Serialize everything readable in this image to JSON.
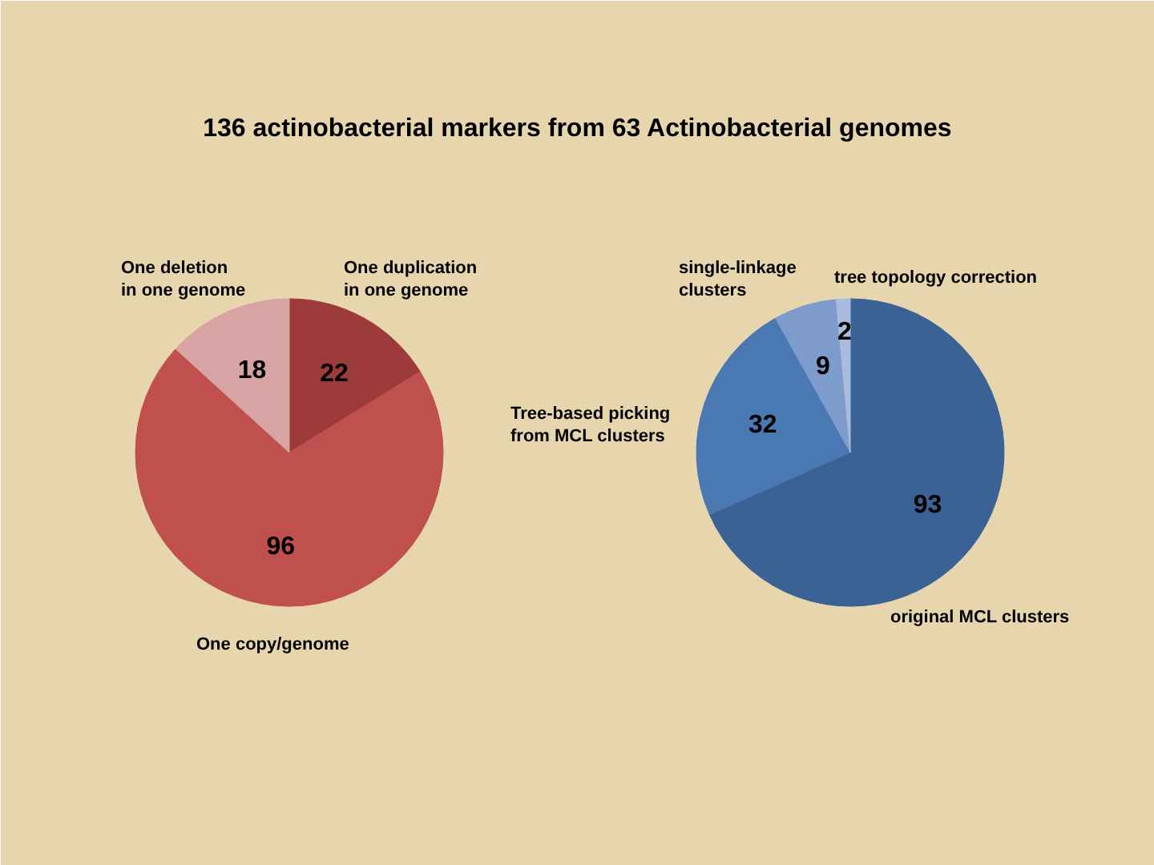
{
  "chart_data": [
    {
      "type": "pie",
      "title": "136 actinobacterial markers from 63 Actinobacterial genomes",
      "categories": [
        "One duplication\nin one genome",
        "One copy/genome",
        "One deletion\nin one genome"
      ],
      "values": [
        22,
        96,
        18
      ],
      "colors": [
        "#9c3b3a",
        "#c0504d",
        "#d7a4a3"
      ],
      "data_labels": true
    },
    {
      "type": "pie",
      "categories": [
        "original MCL clusters",
        "Tree-based picking\nfrom MCL clusters",
        "single-linkage\nclusters",
        "tree topology correction"
      ],
      "values": [
        93,
        32,
        9,
        2
      ],
      "colors": [
        "#3b6294",
        "#4a78b3",
        "#7d9bcb",
        "#aabcdd"
      ],
      "data_labels": true
    }
  ]
}
